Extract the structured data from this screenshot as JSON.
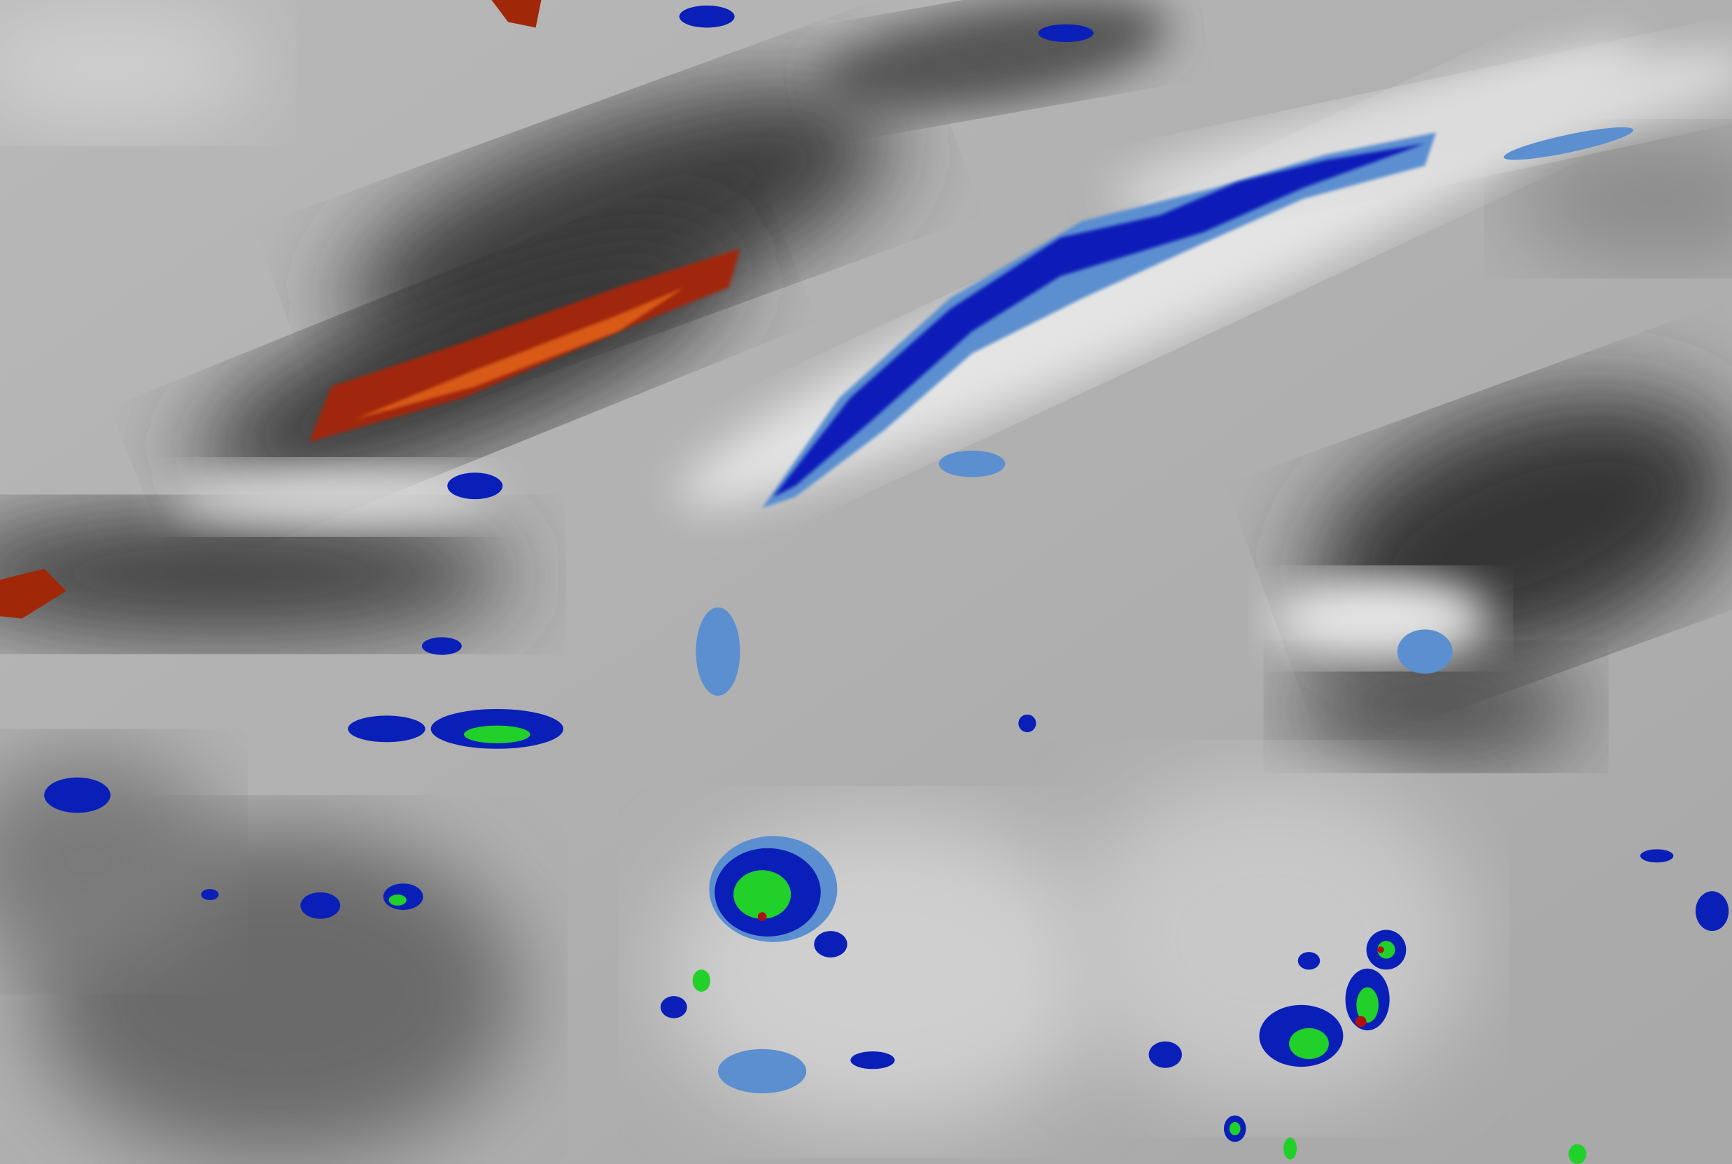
{
  "image": {
    "kind": "satellite-enhanced-infrared-cloud-imagery",
    "colors": {
      "clear_dark": "#3a3a3a",
      "mid_gray": "#9a9a9a",
      "high_cloud": "#e8e8e8",
      "cold_tops_light_blue": "#5b8fd0",
      "cold_tops_blue": "#0a1fb8",
      "colder_green": "#22d02a",
      "coldest_red": "#b01010",
      "dry_streak_red": "#a02808",
      "dry_streak_orange": "#d85a14"
    }
  }
}
